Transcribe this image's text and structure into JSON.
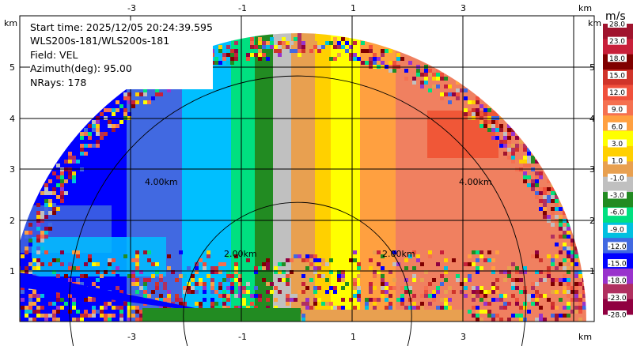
{
  "info": {
    "start_time": "Start time: 2025/12/05 20:24:39.595",
    "instrument": "WLS200s-181/WLS200s-181",
    "field": "Field: VEL",
    "azimuth": "Azimuth(deg): 95.00",
    "nrays": "NRays: 178"
  },
  "axes": {
    "x_unit": "km",
    "y_unit": "km",
    "x_ticks": [
      "-3",
      "-1",
      "1",
      "3"
    ],
    "y_ticks": [
      "5",
      "4",
      "3",
      "2",
      "1"
    ]
  },
  "rings": {
    "inner_labels": [
      "2.00km",
      "2.00km"
    ],
    "outer_labels": [
      "4.00km",
      "4.00km"
    ]
  },
  "colorbar": {
    "unit": "m/s",
    "labels": [
      "28.0",
      "23.0",
      "18.0",
      "15.0",
      "12.0",
      "9.0",
      "6.0",
      "3.0",
      "1.0",
      "-1.0",
      "-3.0",
      "-6.0",
      "-9.0",
      "-12.0",
      "-15.0",
      "-18.0",
      "-23.0",
      "-28.0"
    ],
    "colors": [
      "#a0142e",
      "#c8203a",
      "#800000",
      "#d0342a",
      "#f0503c",
      "#f57050",
      "#ffa040",
      "#ffff00",
      "#ffd000",
      "#e8a050",
      "#c0c0c0",
      "#228b22",
      "#00e080",
      "#00c0e0",
      "#4169e1",
      "#0000ff",
      "#9932cc",
      "#b03060",
      "#900040"
    ]
  },
  "chart_data": {
    "type": "heatmap",
    "title": "",
    "field": "VEL",
    "units": "m/s",
    "x_unit": "km",
    "y_unit": "km",
    "x_ticks": [
      -3,
      -1,
      1,
      3
    ],
    "y_ticks": [
      1,
      2,
      3,
      4,
      5
    ],
    "range_rings_km": [
      2,
      4
    ],
    "velocity_bands_left_to_right": [
      {
        "range": "-12.0 to -15.0",
        "color": "#0000ff"
      },
      {
        "range": "-9.0 to -12.0",
        "color": "#4169e1"
      },
      {
        "range": "-6.0 to -9.0",
        "color": "#00bfff"
      },
      {
        "range": "-3.0 to -6.0",
        "color": "#00e080"
      },
      {
        "range": "-1.0 to -3.0",
        "color": "#228b22"
      },
      {
        "range": "-1.0 to 1.0",
        "color": "#c0c0c0"
      },
      {
        "range": "1.0 to 3.0",
        "color": "#e8a050"
      },
      {
        "range": "3.0 to 6.0",
        "color": "#ffd000"
      },
      {
        "range": "6.0 to 9.0",
        "color": "#ffff00"
      },
      {
        "range": "9.0 to 12.0",
        "color": "#ffa040"
      },
      {
        "range": "12.0 to 15.0",
        "color": "#f08060"
      }
    ]
  }
}
